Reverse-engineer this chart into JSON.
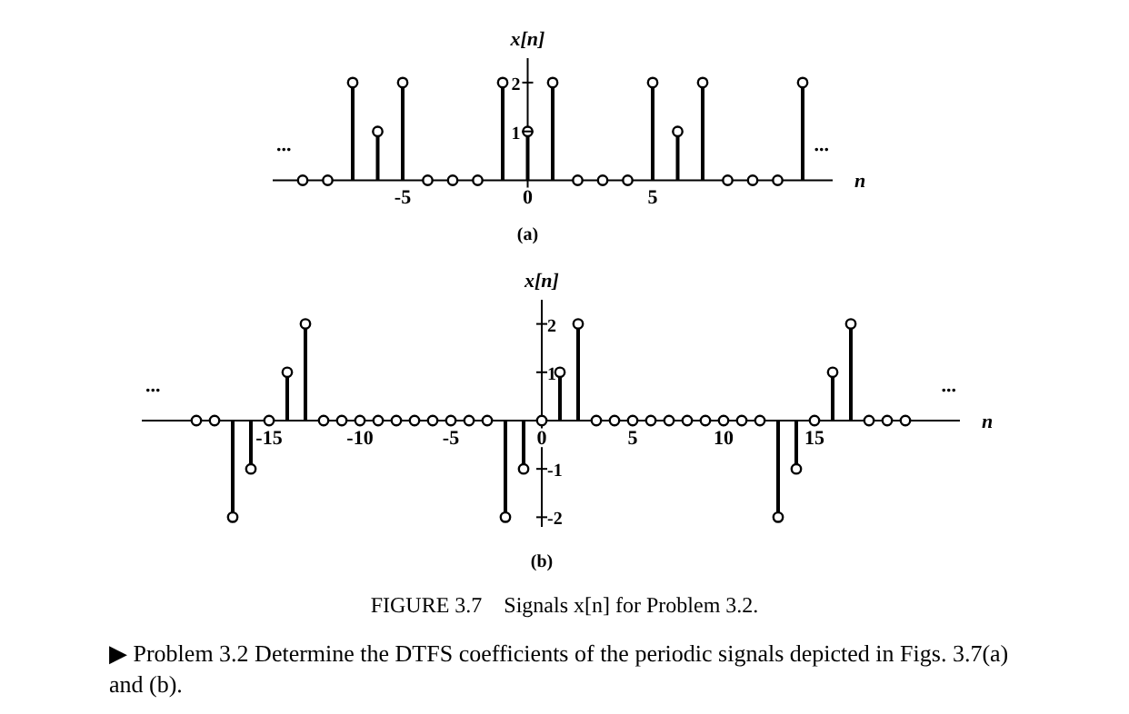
{
  "chart_data": [
    {
      "type": "lollipop",
      "subtitle": "(a)",
      "xlabel": "n",
      "ylabel": "x[n]",
      "x": [
        -9,
        -8,
        -7,
        -6,
        -5,
        -4,
        -3,
        -2,
        -1,
        0,
        1,
        2,
        3,
        4,
        5,
        6,
        7,
        8,
        9,
        10,
        11
      ],
      "values": [
        0,
        0,
        2,
        1,
        2,
        0,
        0,
        0,
        2,
        1,
        2,
        0,
        0,
        0,
        2,
        1,
        2,
        0,
        0,
        0,
        2
      ],
      "color": "#000000",
      "marker": "circle",
      "xlim": [
        -10.2,
        12.2
      ],
      "xticks": [
        -5,
        0,
        5
      ],
      "ylim": [
        -0.4,
        2.5
      ],
      "yticks": [
        1,
        2
      ],
      "annotations": [
        "...",
        "..."
      ]
    },
    {
      "type": "lollipop",
      "subtitle": "(b)",
      "xlabel": "n",
      "ylabel": "x[n]",
      "x": [
        -19,
        -18,
        -17,
        -16,
        -15,
        -14,
        -13,
        -12,
        -11,
        -10,
        -9,
        -8,
        -7,
        -6,
        -5,
        -4,
        -3,
        -2,
        -1,
        0,
        1,
        2,
        3,
        4,
        5,
        6,
        7,
        8,
        9,
        10,
        11,
        12,
        13,
        14,
        15,
        16,
        17,
        18,
        19,
        20
      ],
      "values": [
        0,
        0,
        -2,
        -1,
        0,
        1,
        2,
        0,
        0,
        0,
        0,
        0,
        0,
        0,
        0,
        0,
        0,
        -2,
        -1,
        0,
        1,
        2,
        0,
        0,
        0,
        0,
        0,
        0,
        0,
        0,
        0,
        0,
        -2,
        -1,
        0,
        1,
        2,
        0,
        0,
        0
      ],
      "color": "#000000",
      "marker": "circle",
      "xlim": [
        -22,
        23
      ],
      "xticks": [
        -15,
        -10,
        -5,
        0,
        5,
        10,
        15
      ],
      "ylim": [
        -2.2,
        2.5
      ],
      "yticks": [
        -2,
        -1,
        1,
        2
      ],
      "annotations": [
        "...",
        "...",
        "FIGURE 3.7    Signals x[n] for Problem 3.2.",
        "▶ Problem 3.2   Determine the DTFS coefficients of the periodic signals depicted in Figs. 3.7(a) and (b)."
      ]
    }
  ]
}
